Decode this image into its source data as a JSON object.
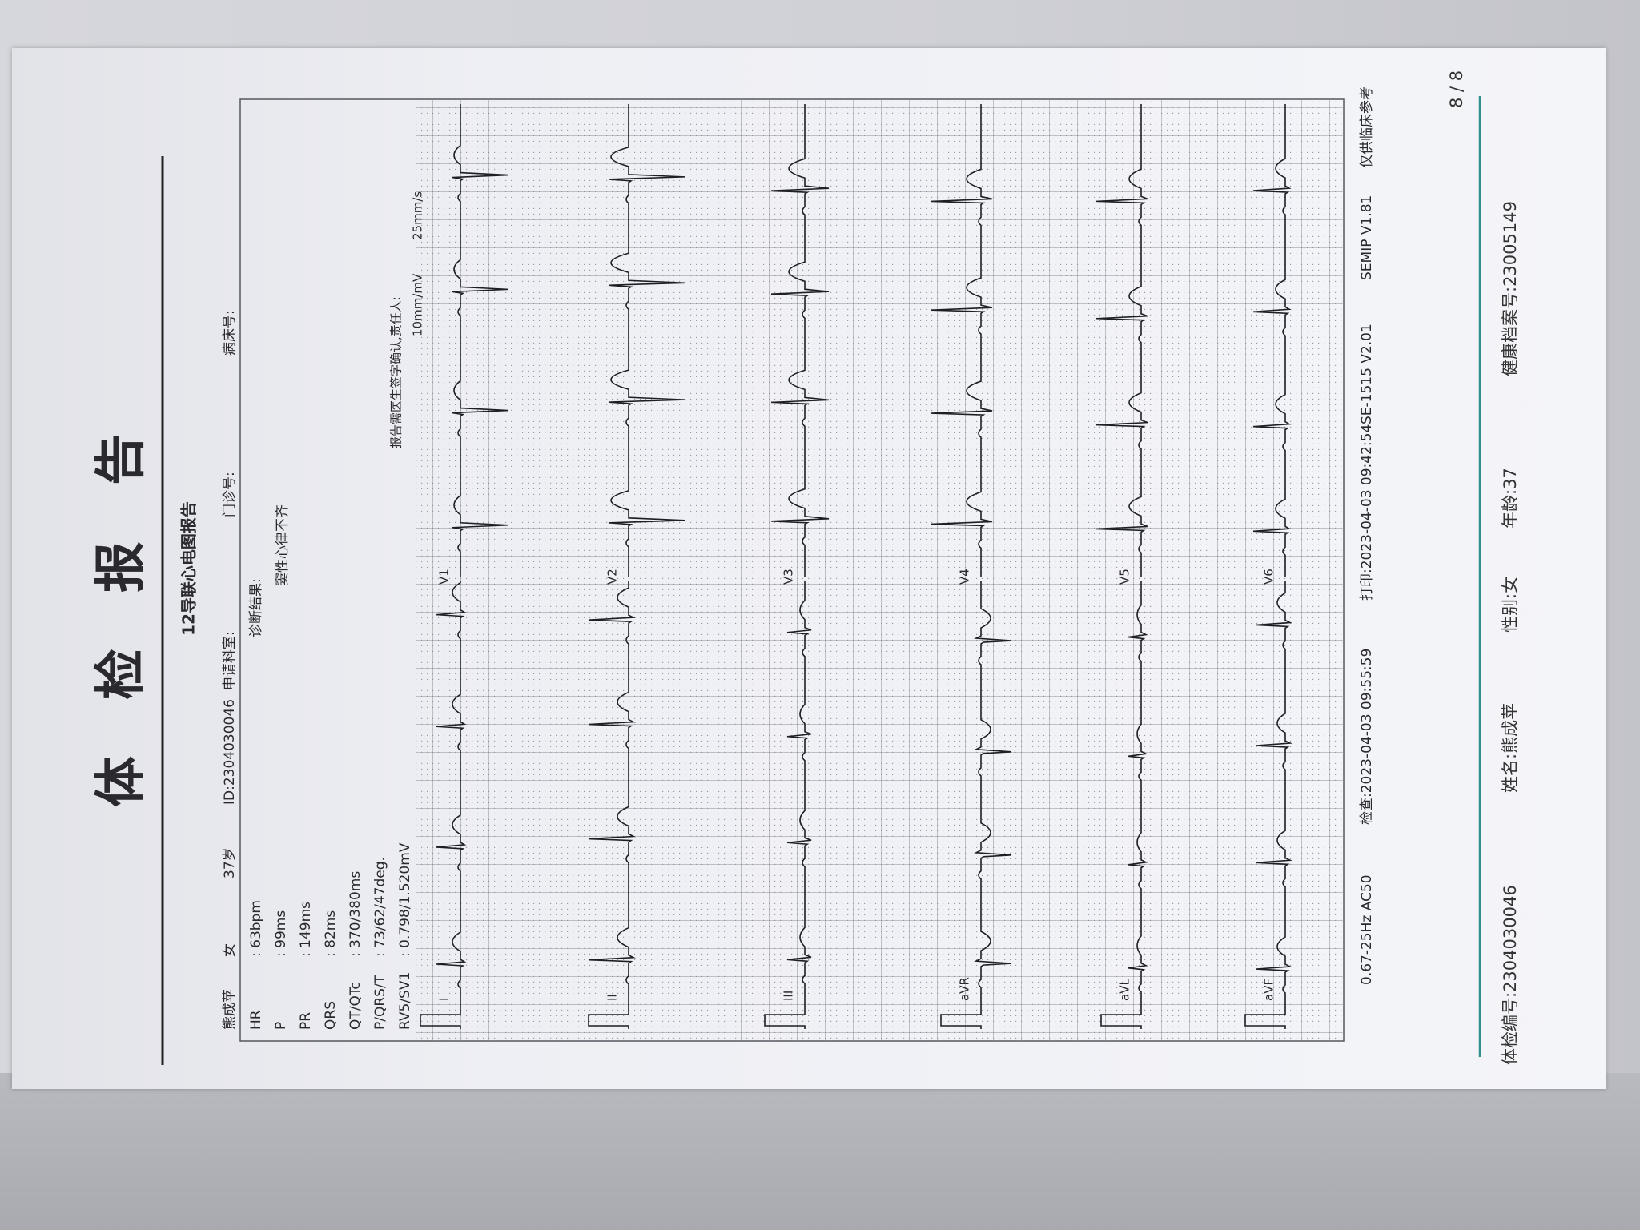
{
  "header": {
    "title": "体检报告",
    "subtitle": "12导联心电图报告"
  },
  "patient": {
    "name": "熊成苹",
    "sex": "女",
    "age": "37岁",
    "id": "ID:2304030046",
    "department": "申请科室:",
    "outpatient_no": "门诊号:",
    "bed_no": "病床号:"
  },
  "measurements": [
    {
      "label": "HR",
      "value": ": 63bpm"
    },
    {
      "label": "P",
      "value": ": 99ms"
    },
    {
      "label": "PR",
      "value": ": 149ms"
    },
    {
      "label": "QRS",
      "value": ": 82ms"
    },
    {
      "label": "QT/QTc",
      "value": ": 370/380ms"
    },
    {
      "label": "P/QRS/T",
      "value": ": 73/62/47deg."
    },
    {
      "label": "RV5/SV1",
      "value": ": 0.798/1.520mV"
    }
  ],
  "diagnosis": {
    "label": "诊断结果:",
    "text": "窦性心律不齐"
  },
  "signature": "报告需医生签字确认,责任人:",
  "calibration": {
    "gain": "10mm/mV",
    "speed": "25mm/s"
  },
  "leads": [
    "I",
    "II",
    "III",
    "aVR",
    "aVL",
    "aVF",
    "V1",
    "V2",
    "V3",
    "V4",
    "V5",
    "V6"
  ],
  "device": {
    "filter": "0.67-25Hz AC50",
    "exam_time": "检查:2023-04-03 09:55:59",
    "print_time": "打印:2023-04-03 09:42:54",
    "model": "SE-1515 V2.01",
    "software": "SEMIP V1.81",
    "note": "仅供临床参考"
  },
  "footer": {
    "exam_no": "体检编号:2304030046",
    "name": "姓名:熊成苹",
    "sex": "性别:女",
    "age": "年龄:37",
    "record_no": "健康档案号:23005149",
    "page": "8 / 8"
  }
}
